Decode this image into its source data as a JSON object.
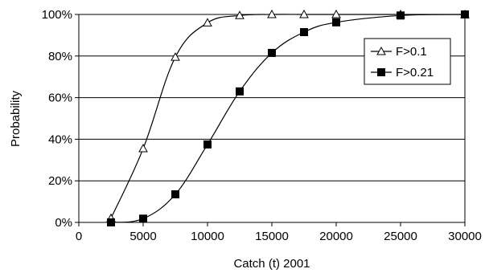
{
  "chart_data": {
    "type": "line",
    "title": "",
    "xlabel": "Catch (t) 2001",
    "ylabel": "Probability",
    "xlim": [
      0,
      30000
    ],
    "ylim": [
      0,
      1
    ],
    "x_ticks": [
      0,
      5000,
      10000,
      15000,
      20000,
      25000,
      30000
    ],
    "x_tick_labels": [
      "0",
      "5000",
      "10000",
      "15000",
      "20000",
      "25000",
      "30000"
    ],
    "y_ticks": [
      0,
      0.2,
      0.4,
      0.6,
      0.8,
      1.0
    ],
    "y_tick_labels": [
      "0%",
      "20%",
      "40%",
      "60%",
      "80%",
      "100%"
    ],
    "grid": "horizontal",
    "legend_position": "right",
    "series": [
      {
        "name": "F>0.1",
        "marker": "open-triangle",
        "color": "#000000",
        "points": [
          {
            "x": 2500,
            "y": 0.02
          },
          {
            "x": 5000,
            "y": 0.355
          },
          {
            "x": 7500,
            "y": 0.795
          },
          {
            "x": 10000,
            "y": 0.96
          },
          {
            "x": 12500,
            "y": 0.995
          },
          {
            "x": 15000,
            "y": 1.0
          },
          {
            "x": 17500,
            "y": 1.0
          },
          {
            "x": 20000,
            "y": 1.0
          },
          {
            "x": 25000,
            "y": 1.0
          },
          {
            "x": 30000,
            "y": 1.0
          }
        ]
      },
      {
        "name": "F>0.21",
        "marker": "filled-square",
        "color": "#000000",
        "points": [
          {
            "x": 2500,
            "y": 0.0
          },
          {
            "x": 5000,
            "y": 0.018
          },
          {
            "x": 7500,
            "y": 0.135
          },
          {
            "x": 10000,
            "y": 0.375
          },
          {
            "x": 12500,
            "y": 0.63
          },
          {
            "x": 15000,
            "y": 0.815
          },
          {
            "x": 17500,
            "y": 0.915
          },
          {
            "x": 20000,
            "y": 0.962
          },
          {
            "x": 25000,
            "y": 0.995
          },
          {
            "x": 30000,
            "y": 1.0
          }
        ]
      }
    ]
  }
}
